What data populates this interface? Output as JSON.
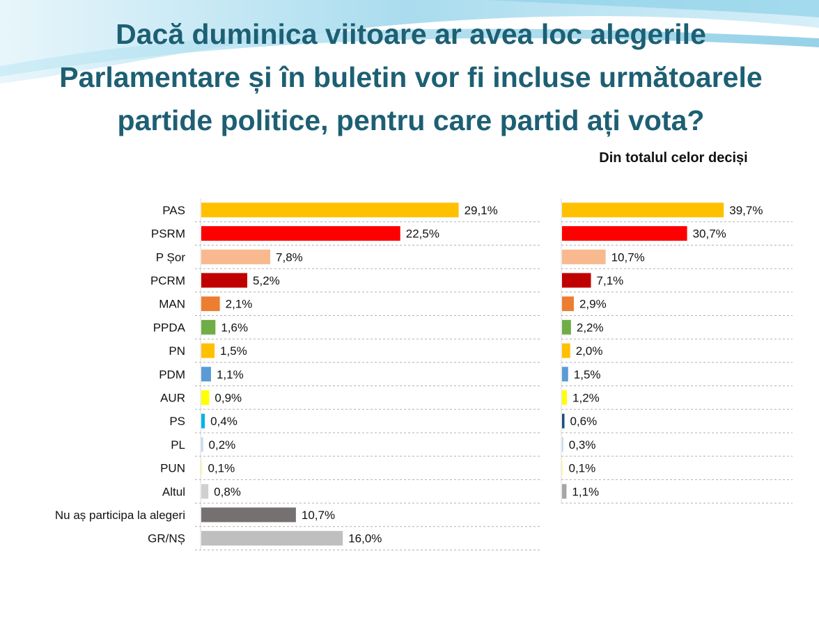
{
  "title_lines": [
    "Dacă duminica viitoare ar avea loc alegerile",
    "Parlamentare și în buletin vor fi incluse următoarele",
    "partide politice, pentru care partid ați vota?"
  ],
  "colors": {
    "title": "#1d5f73",
    "background_accent": "#a9dcee"
  },
  "chart_data": [
    {
      "type": "bar",
      "orientation": "horizontal",
      "title": "",
      "categories": [
        "PAS",
        "PSRM",
        "P Șor",
        "PCRM",
        "MAN",
        "PPDA",
        "PN",
        "PDM",
        "AUR",
        "PS",
        "PL",
        "PUN",
        "Altul",
        "Nu aș participa la alegeri",
        "GR/NȘ"
      ],
      "values": [
        29.1,
        22.5,
        7.8,
        5.2,
        2.1,
        1.6,
        1.5,
        1.1,
        0.9,
        0.4,
        0.2,
        0.1,
        0.8,
        10.7,
        16.0
      ],
      "value_labels": [
        "29,1%",
        "22,5%",
        "7,8%",
        "5,2%",
        "2,1%",
        "1,6%",
        "1,5%",
        "1,1%",
        "0,9%",
        "0,4%",
        "0,2%",
        "0,1%",
        "0,8%",
        "10,7%",
        "16,0%"
      ],
      "colors": [
        "#ffc000",
        "#ff0000",
        "#f8b98f",
        "#c00000",
        "#ed7d31",
        "#70ad47",
        "#ffc000",
        "#5b9bd5",
        "#ffff00",
        "#00b0f0",
        "#bdd7ee",
        "#ffff99",
        "#d0d0d0",
        "#767171",
        "#bfbfbf"
      ],
      "xlim": [
        0,
        35
      ],
      "grid": "dashed row separators"
    },
    {
      "type": "bar",
      "orientation": "horizontal",
      "title": "Din totalul celor deciși",
      "categories": [
        "PAS",
        "PSRM",
        "P Șor",
        "PCRM",
        "MAN",
        "PPDA",
        "PN",
        "PDM",
        "AUR",
        "PS",
        "PL",
        "PUN",
        "Altul"
      ],
      "values": [
        39.7,
        30.7,
        10.7,
        7.1,
        2.9,
        2.2,
        2.0,
        1.5,
        1.2,
        0.6,
        0.3,
        0.1,
        1.1
      ],
      "value_labels": [
        "39,7%",
        "30,7%",
        "10,7%",
        "7,1%",
        "2,9%",
        "2,2%",
        "2,0%",
        "1,5%",
        "1,2%",
        "0,6%",
        "0,3%",
        "0,1%",
        "1,1%"
      ],
      "colors": [
        "#ffc000",
        "#ff0000",
        "#f8b98f",
        "#c00000",
        "#ed7d31",
        "#70ad47",
        "#ffc000",
        "#5b9bd5",
        "#ffff00",
        "#1f4e79",
        "#bdd7ee",
        "#ffff99",
        "#a6a6a6"
      ],
      "xlim": [
        0,
        45
      ],
      "grid": "dashed row separators"
    }
  ]
}
